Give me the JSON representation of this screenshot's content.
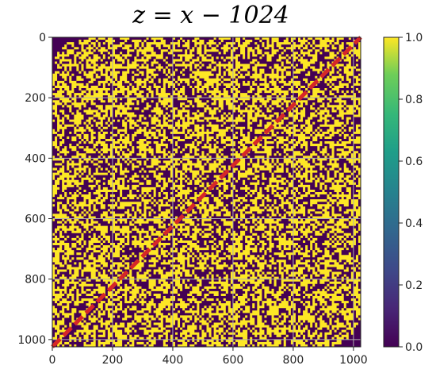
{
  "chart_data": {
    "type": "heatmap",
    "title": "z = x − 1024",
    "xlabel": "",
    "ylabel": "",
    "xlim": [
      0,
      1024
    ],
    "ylim": [
      1024,
      0
    ],
    "x_ticks": [
      "0",
      "200",
      "400",
      "600",
      "800",
      "1000"
    ],
    "y_ticks": [
      "0",
      "200",
      "400",
      "600",
      "800",
      "1000"
    ],
    "x_tick_values": [
      0,
      200,
      400,
      600,
      800,
      1000
    ],
    "y_tick_values": [
      0,
      200,
      400,
      600,
      800,
      1000
    ],
    "grid": true,
    "values": "binary random field (0 or 1), approximately 50% ones; corners near (0,0) and (1024,1024) are 0",
    "value_range": [
      0.0,
      1.0
    ],
    "colormap": "viridis",
    "low_color": "#440154",
    "high_color": "#fde725",
    "colorbar": {
      "ticks": [
        "0.0",
        "0.2",
        "0.4",
        "0.6",
        "0.8",
        "1.0"
      ],
      "tick_values": [
        0.0,
        0.2,
        0.4,
        0.6,
        0.8,
        1.0
      ],
      "range": [
        0.0,
        1.0
      ]
    },
    "overlay_line": {
      "style": "dashed",
      "color": "#d62728",
      "x": [
        0,
        1024
      ],
      "y": [
        1024,
        0
      ]
    }
  }
}
